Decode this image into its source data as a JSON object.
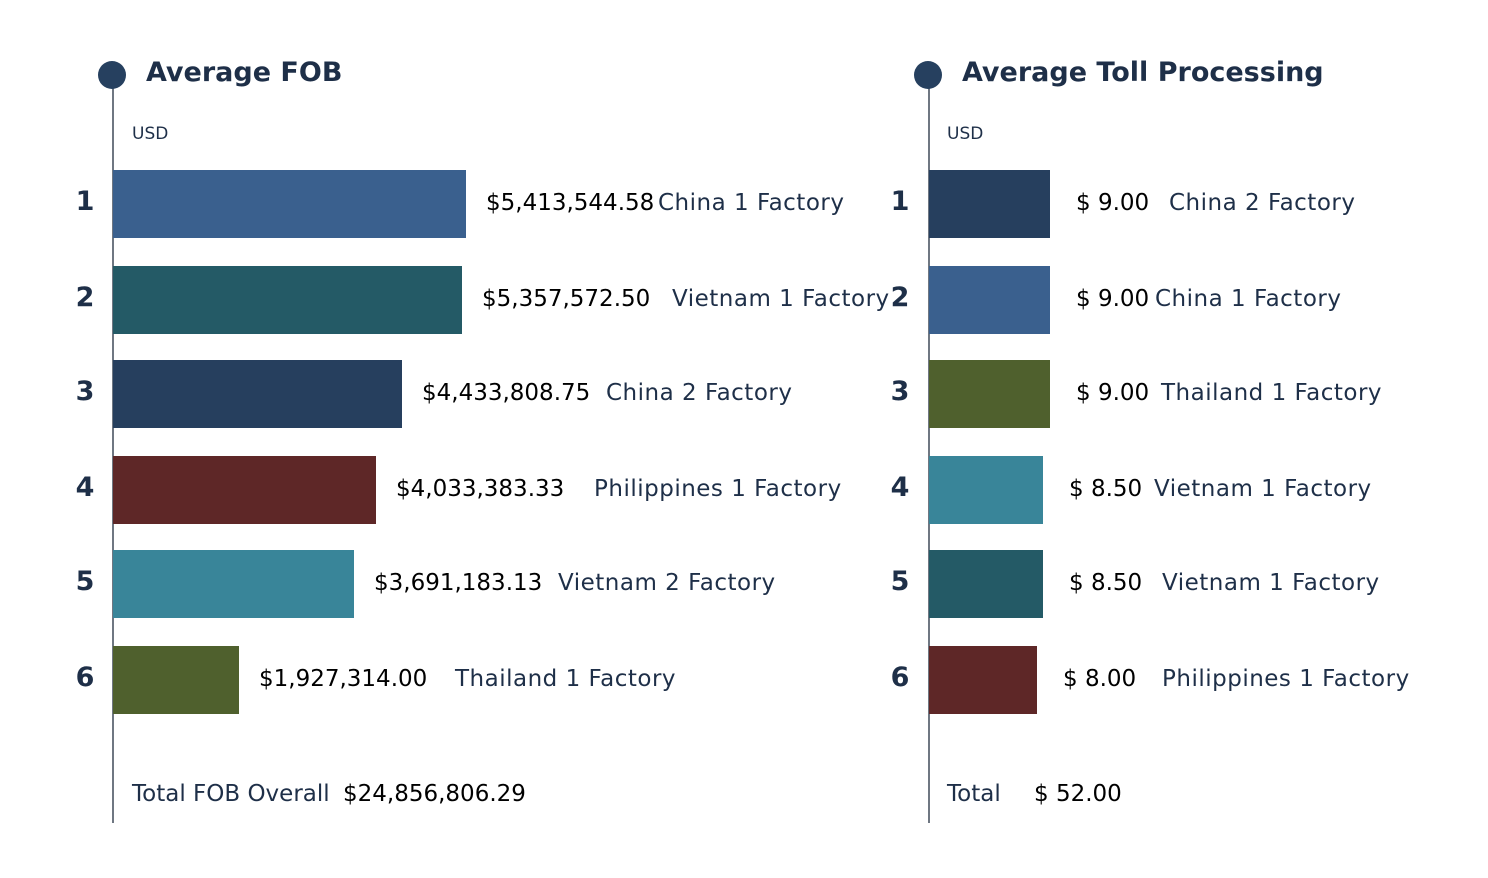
{
  "chart_data": [
    {
      "type": "bar",
      "orientation": "horizontal",
      "title": "Average FOB",
      "unit_label": "USD",
      "ranks": [
        "1",
        "2",
        "3",
        "4",
        "5",
        "6"
      ],
      "categories": [
        "China 1 Factory",
        "Vietnam 1 Factory",
        "China 2 Factory",
        "Philippines 1 Factory",
        "Vietnam 2 Factory",
        "Thailand 1 Factory"
      ],
      "values": [
        5413544.58,
        5357572.5,
        4433808.75,
        4033383.33,
        3691183.13,
        1927314.0
      ],
      "value_labels": [
        "$5,413,544.58",
        "$5,357,572.50",
        "$4,433,808.75",
        "$4,033,383.33",
        "$3,691,183.13",
        "$1,927,314.00"
      ],
      "colors": [
        "#3a608e",
        "#245a66",
        "#263f5e",
        "#5e2727",
        "#398599",
        "#4f602d"
      ],
      "total_label": "Total FOB Overall",
      "total_value": "$24,856,806.29"
    },
    {
      "type": "bar",
      "orientation": "horizontal",
      "title": "Average Toll Processing",
      "unit_label": "USD",
      "ranks": [
        "1",
        "2",
        "3",
        "4",
        "5",
        "6"
      ],
      "categories": [
        "China 2 Factory",
        "China 1 Factory",
        "Thailand 1 Factory",
        "Vietnam 1 Factory",
        "Vietnam 1 Factory",
        "Philippines 1 Factory"
      ],
      "values": [
        9.0,
        9.0,
        9.0,
        8.5,
        8.5,
        8.0
      ],
      "value_labels": [
        "$ 9.00",
        "$ 9.00",
        "$ 9.00",
        "$ 8.50",
        "$ 8.50",
        "$ 8.00"
      ],
      "colors": [
        "#263f5e",
        "#3a608e",
        "#4f602d",
        "#398599",
        "#245a66",
        "#5e2727"
      ],
      "total_label": "Total",
      "total_value": "$ 52.00"
    }
  ]
}
